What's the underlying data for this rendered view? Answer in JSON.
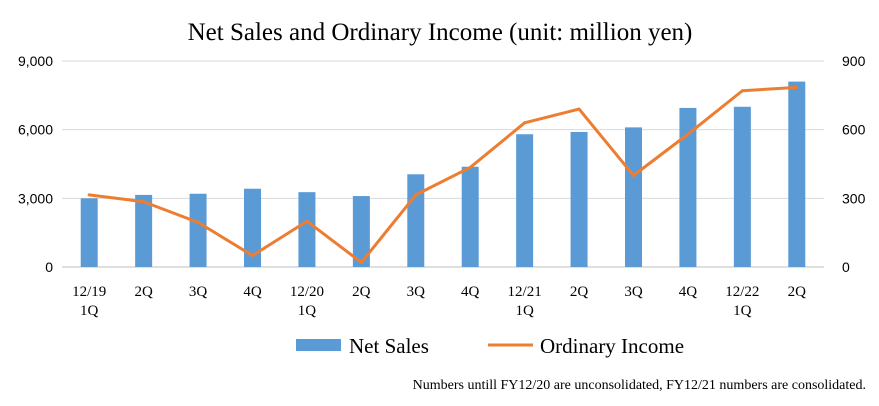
{
  "chart_data": {
    "type": "bar",
    "title": "Net Sales and Ordinary Income (unit: million yen)",
    "categories": [
      [
        "12/19",
        "1Q"
      ],
      [
        "2Q"
      ],
      [
        "3Q"
      ],
      [
        "4Q"
      ],
      [
        "12/20",
        "1Q"
      ],
      [
        "2Q"
      ],
      [
        "3Q"
      ],
      [
        "4Q"
      ],
      [
        "12/21",
        "1Q"
      ],
      [
        "2Q"
      ],
      [
        "3Q"
      ],
      [
        "4Q"
      ],
      [
        "12/22",
        "1Q"
      ],
      [
        "2Q"
      ]
    ],
    "series": [
      {
        "name": "Net Sales",
        "type": "bar",
        "axis": "left",
        "color": "#5b9bd5",
        "values": [
          3000,
          3150,
          3200,
          3420,
          3270,
          3100,
          4050,
          4380,
          5800,
          5900,
          6100,
          6950,
          7000,
          8100
        ]
      },
      {
        "name": "Ordinary Income",
        "type": "line",
        "axis": "right",
        "color": "#ed7d31",
        "values": [
          315,
          285,
          195,
          50,
          200,
          20,
          315,
          435,
          630,
          690,
          400,
          580,
          770,
          785
        ]
      }
    ],
    "y_left": {
      "min": 0,
      "max": 9000,
      "ticks": [
        "0",
        "3,000",
        "6,000",
        "9,000"
      ],
      "tick_values": [
        0,
        3000,
        6000,
        9000
      ]
    },
    "y_right": {
      "min": 0,
      "max": 900,
      "ticks": [
        "0",
        "300",
        "600",
        "900"
      ],
      "tick_values": [
        0,
        300,
        600,
        900
      ]
    },
    "grid": true,
    "legend_position": "bottom",
    "footnote": "Numbers untill FY12/20 are unconsolidated, FY12/21 numbers are consolidated."
  }
}
